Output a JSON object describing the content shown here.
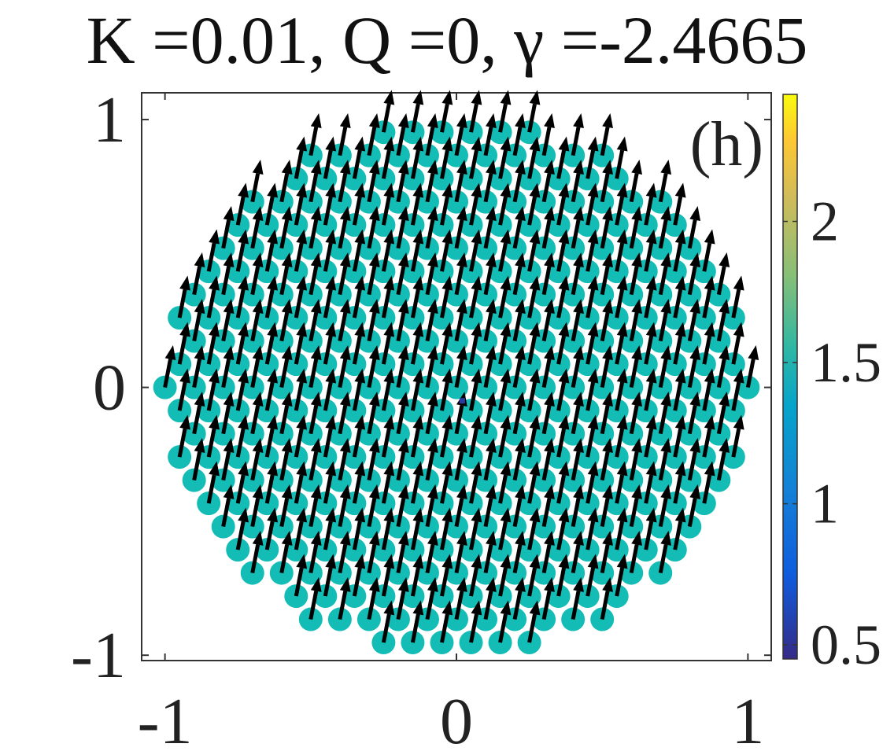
{
  "chart_data": {
    "type": "scatter",
    "title": "K =0.01, Q =0, γ =-2.4665",
    "panel_label": "(h)",
    "xlabel": "",
    "ylabel": "",
    "xlim": [
      -1.08,
      1.08
    ],
    "ylim": [
      -1.02,
      1.1
    ],
    "xticks": [
      -1,
      0,
      1
    ],
    "yticks": [
      -1,
      0,
      1
    ],
    "x_tick_labels": [
      "-1",
      "0",
      "1"
    ],
    "y_tick_labels": [
      "-1",
      "0",
      "1"
    ],
    "grid": false,
    "colorbar": {
      "colormap": "parula",
      "range": [
        0.45,
        2.45
      ],
      "ticks": [
        0.5,
        1,
        1.5,
        2
      ],
      "tick_labels": [
        "0.5",
        "1",
        "1.5",
        "2"
      ]
    },
    "points": {
      "description_of_lattice": "triangular lattice filling unit disc",
      "lattice_spacing": 0.1,
      "disc_radius": 1.0,
      "marker_value": 1.5,
      "marker_color": "#13bdb5"
    },
    "vectors": {
      "direction_deg": 80,
      "length": 0.16,
      "color": "#000000"
    },
    "center_marker": {
      "x": 0.02,
      "y": -0.05,
      "color": "#2b3a9e"
    }
  }
}
